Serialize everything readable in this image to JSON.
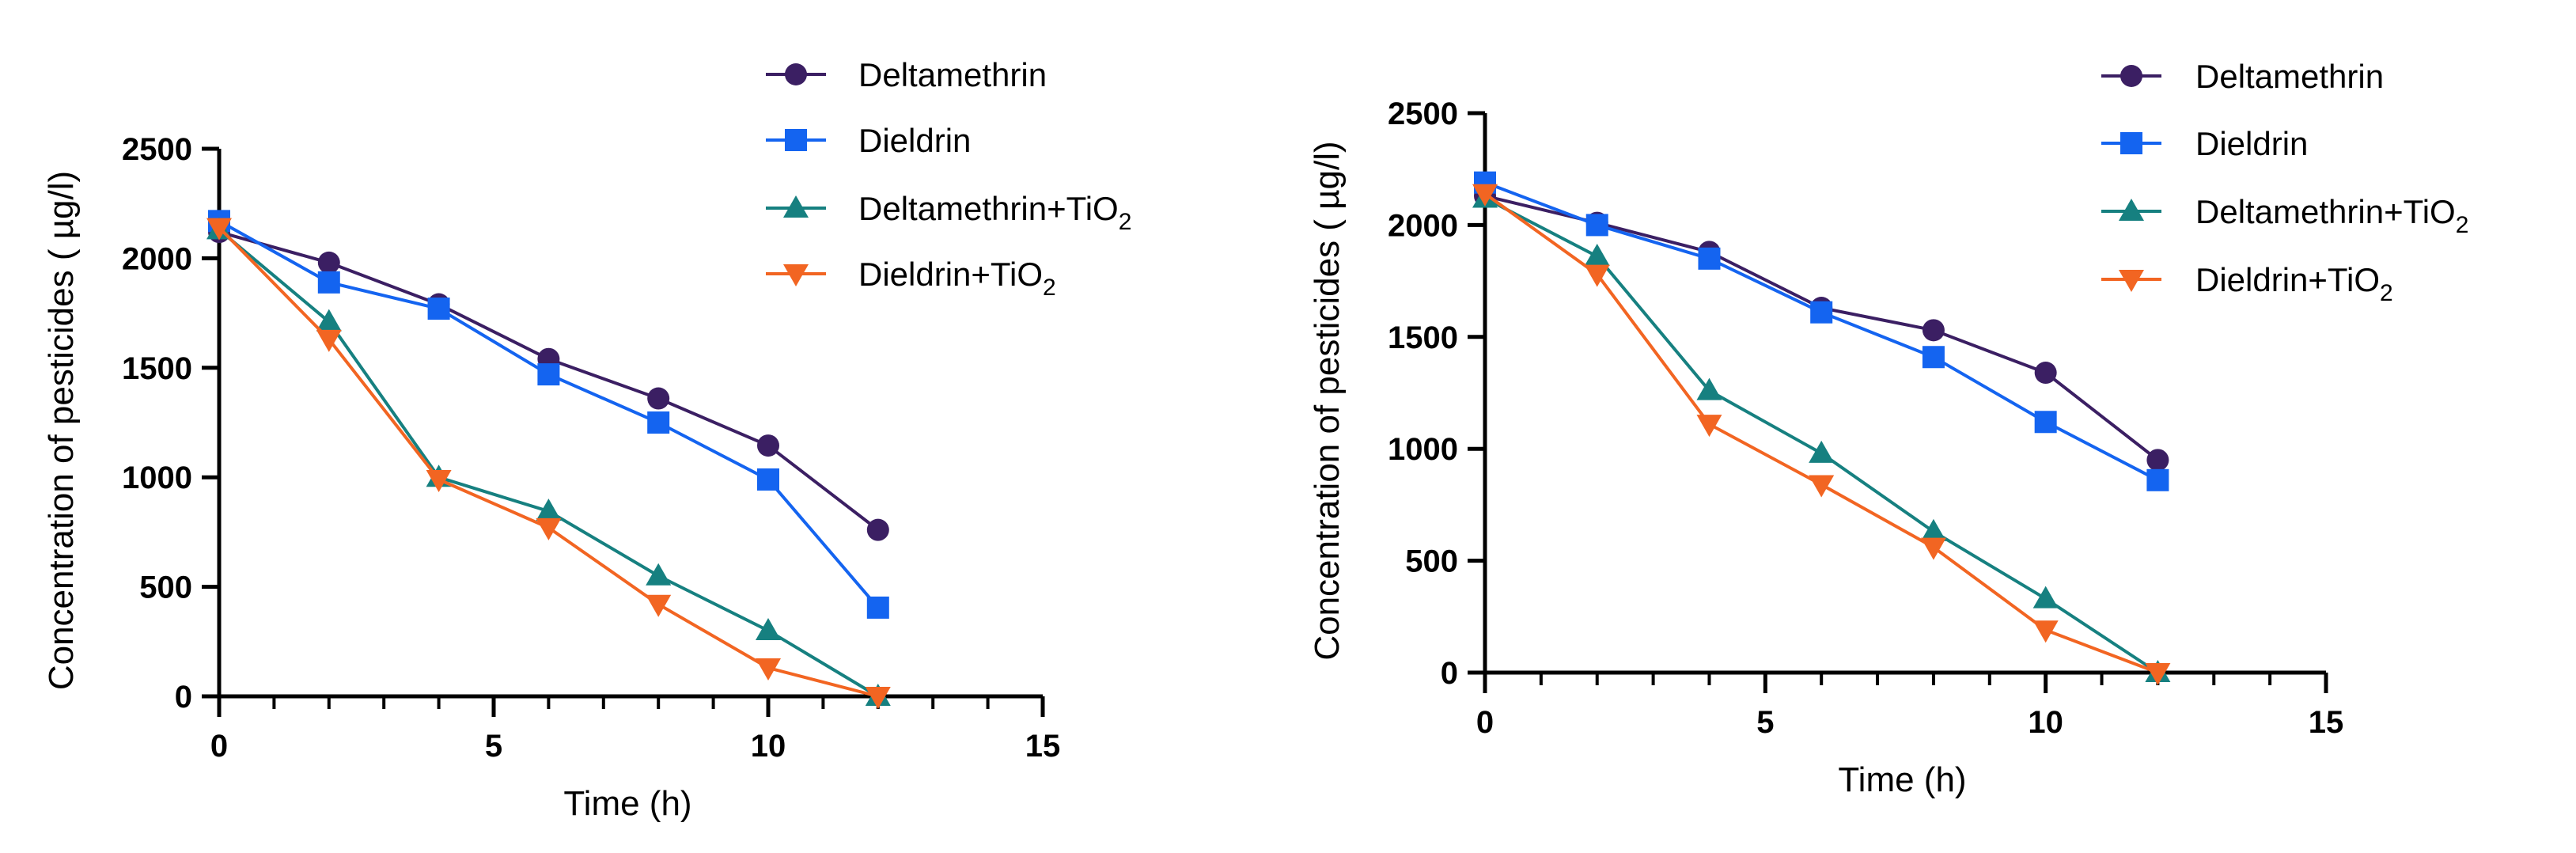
{
  "chart_data": [
    {
      "type": "line",
      "title": "",
      "xlabel": "Time (h)",
      "ylabel": "Concentration of pesticides ( µg/l)",
      "xlim": [
        0,
        15
      ],
      "ylim": [
        0,
        2500
      ],
      "xticks": [
        0,
        5,
        10,
        15
      ],
      "yticks": [
        0,
        500,
        1000,
        1500,
        2000,
        2500
      ],
      "grid": false,
      "legend_position": "top-right",
      "x": [
        0,
        2,
        4,
        6,
        8,
        10,
        12
      ],
      "series": [
        {
          "name": "Deltamethrin",
          "sub": "",
          "marker": "circle",
          "color": "#3b1f63",
          "values": [
            2120,
            1980,
            1790,
            1540,
            1360,
            1145,
            760
          ]
        },
        {
          "name": "Dieldrin",
          "sub": "",
          "marker": "square",
          "color": "#1464f0",
          "values": [
            2170,
            1890,
            1770,
            1470,
            1250,
            990,
            405
          ]
        },
        {
          "name": "Deltamethrin+TiO",
          "sub": "2",
          "marker": "triangle-up",
          "color": "#168080",
          "values": [
            2130,
            1710,
            1000,
            845,
            550,
            300,
            0
          ]
        },
        {
          "name": "Dieldrin+TiO",
          "sub": "2",
          "marker": "triangle-down",
          "color": "#f26522",
          "values": [
            2140,
            1630,
            990,
            770,
            420,
            130,
            0
          ]
        }
      ]
    },
    {
      "type": "line",
      "title": "",
      "xlabel": "Time (h)",
      "ylabel": "Concentration of pesticides ( µg/l)",
      "xlim": [
        0,
        15
      ],
      "ylim": [
        0,
        2500
      ],
      "xticks": [
        0,
        5,
        10,
        15
      ],
      "yticks": [
        0,
        500,
        1000,
        1500,
        2000,
        2500
      ],
      "grid": false,
      "legend_position": "top-right",
      "x": [
        0,
        2,
        4,
        6,
        8,
        10,
        12
      ],
      "series": [
        {
          "name": "Deltamethrin",
          "sub": "",
          "marker": "circle",
          "color": "#3b1f63",
          "values": [
            2130,
            2010,
            1880,
            1630,
            1530,
            1340,
            950
          ]
        },
        {
          "name": "Dieldrin",
          "sub": "",
          "marker": "square",
          "color": "#1464f0",
          "values": [
            2190,
            2000,
            1850,
            1610,
            1410,
            1120,
            860
          ]
        },
        {
          "name": "Deltamethrin+TiO",
          "sub": "2",
          "marker": "triangle-up",
          "color": "#168080",
          "values": [
            2120,
            1860,
            1260,
            980,
            630,
            330,
            0
          ]
        },
        {
          "name": "Dieldrin+TiO",
          "sub": "2",
          "marker": "triangle-down",
          "color": "#f26522",
          "values": [
            2140,
            1780,
            1110,
            840,
            560,
            190,
            0
          ]
        }
      ]
    }
  ]
}
